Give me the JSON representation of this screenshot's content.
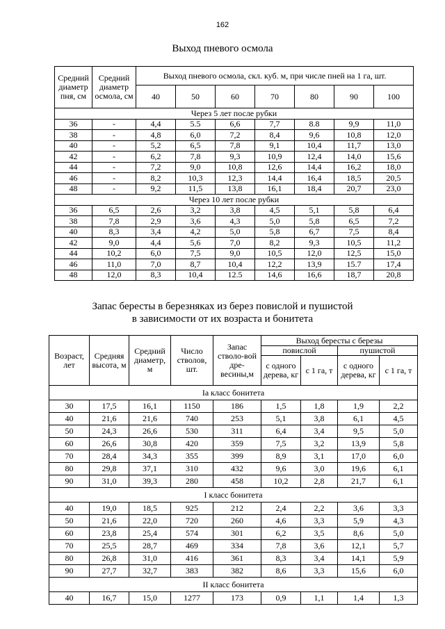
{
  "page_number": "162",
  "table1": {
    "title": "Выход пневого осмола",
    "header": {
      "stump_diameter": "Средний диаметр пня, см",
      "resin_diameter": "Средний диаметр осмола, см",
      "yield": "Выход пневого осмола, скл. куб. м, при числе пней на 1 га, шт.",
      "counts": [
        "40",
        "50",
        "60",
        "70",
        "80",
        "90",
        "100"
      ]
    },
    "sections": [
      {
        "title": "Через 5 лет после рубки",
        "rows": [
          [
            "36",
            "-",
            "4,4",
            "5.5",
            "6,6",
            "7,7",
            "8.8",
            "9,9",
            "11,0"
          ],
          [
            "38",
            "-",
            "4,8",
            "6,0",
            "7,2",
            "8,4",
            "9,6",
            "10,8",
            "12,0"
          ],
          [
            "40",
            "-",
            "5,2",
            "6,5",
            "7,8",
            "9,1",
            "10,4",
            "11,7",
            "13,0"
          ],
          [
            "42",
            "-",
            "6,2",
            "7,8",
            "9,3",
            "10,9",
            "12,4",
            "14,0",
            "15,6"
          ],
          [
            "44",
            "-",
            "7,2",
            "9,0",
            "10,8",
            "12,6",
            "14,4",
            "16,2",
            "18,0"
          ],
          [
            "46",
            "-",
            "8,2",
            "10,3",
            "12,3",
            "14,4",
            "16,4",
            "18,5",
            "20,5"
          ],
          [
            "48",
            "-",
            "9,2",
            "11,5",
            "13,8",
            "16,1",
            "18,4",
            "20,7",
            "23,0"
          ]
        ]
      },
      {
        "title": "Через 10 лет после рубки",
        "rows": [
          [
            "36",
            "6,5",
            "2,6",
            "3,2",
            "3,8",
            "4,5",
            "5,1",
            "5,8",
            "6,4"
          ],
          [
            "38",
            "7,8",
            "2,9",
            "3,6",
            "4,3",
            "5,0",
            "5,8",
            "6,5",
            "7,2"
          ],
          [
            "40",
            "8,3",
            "3,4",
            "4,2",
            "5,0",
            "5,8",
            "6,7",
            "7,5",
            "8,4"
          ],
          [
            "42",
            "9,0",
            "4,4",
            "5,6",
            "7,0",
            "8,2",
            "9,3",
            "10,5",
            "11,2"
          ],
          [
            "44",
            "10,2",
            "6,0",
            "7,5",
            "9,0",
            "10,5",
            "12,0",
            "12,5",
            "15,0"
          ],
          [
            "46",
            "11,0",
            "7,0",
            "8,7",
            "10,4",
            "12,2",
            "13,9",
            "15.7",
            "17,4"
          ],
          [
            "48",
            "12,0",
            "8,3",
            "10,4",
            "12.5",
            "14,6",
            "16,6",
            "18,7",
            "20,8"
          ]
        ]
      }
    ]
  },
  "table2": {
    "title_lines": [
      "Запас бересты в березняках из берез повислой и пушистой",
      "в зависимости от их возраста и бонитета"
    ],
    "header": {
      "age": "Возраст, лет",
      "height": "Средняя высота, м",
      "diameter": "Средний диаметр, м",
      "stems": "Число стволов, шт.",
      "stock": "Запас стволо-вой дре-весины,м",
      "bark_yield": "Выход бересты с березы",
      "pendula": "повислой",
      "pubescens": "пушистой",
      "per_tree_1": "с одного дерева, кг",
      "per_ha_1": "с 1 га, т",
      "per_tree_2": "с одного дерева, кг",
      "per_ha_2": "с 1 га, т"
    },
    "sections": [
      {
        "title": "Ia класс бонитета",
        "rows": [
          [
            "30",
            "17,5",
            "16,1",
            "1150",
            "186",
            "1,5",
            "1,8",
            "1,9",
            "2,2"
          ],
          [
            "40",
            "21,6",
            "21,6",
            "740",
            "253",
            "5,1",
            "3,8",
            "6,1",
            "4,5"
          ],
          [
            "50",
            "24,3",
            "26,6",
            "530",
            "311",
            "6,4",
            "3,4",
            "9,5",
            "5,0"
          ],
          [
            "60",
            "26,6",
            "30,8",
            "420",
            "359",
            "7,5",
            "3,2",
            "13,9",
            "5,8"
          ],
          [
            "70",
            "28,4",
            "34,3",
            "355",
            "399",
            "8,9",
            "3,1",
            "17,0",
            "6,0"
          ],
          [
            "80",
            "29,8",
            "37,1",
            "310",
            "432",
            "9,6",
            "3,0",
            "19,6",
            "6,1"
          ],
          [
            "90",
            "31,0",
            "39,3",
            "280",
            "458",
            "10,2",
            "2,8",
            "21,7",
            "6,1"
          ]
        ]
      },
      {
        "title": "I класс бонитета",
        "rows": [
          [
            "40",
            "19,0",
            "18,5",
            "925",
            "212",
            "2,4",
            "2,2",
            "3,6",
            "3,3"
          ],
          [
            "50",
            "21,6",
            "22,0",
            "720",
            "260",
            "4,6",
            "3,3",
            "5,9",
            "4,3"
          ],
          [
            "60",
            "23,8",
            "25,4",
            "574",
            "301",
            "6,2",
            "3,5",
            "8,6",
            "5,0"
          ],
          [
            "70",
            "25,5",
            "28,7",
            "469",
            "334",
            "7,8",
            "3,6",
            "12,1",
            "5,7"
          ],
          [
            "80",
            "26,8",
            "31,0",
            "416",
            "361",
            "8,3",
            "3,4",
            "14,1",
            "5,9"
          ],
          [
            "90",
            "27,7",
            "32,7",
            "383",
            "382",
            "8,6",
            "3,3",
            "15,6",
            "6,0"
          ]
        ]
      },
      {
        "title": "II класс бонитета",
        "rows": [
          [
            "40",
            "16,7",
            "15,0",
            "1277",
            "173",
            "0,9",
            "1,1",
            "1,4",
            "1,3"
          ]
        ]
      }
    ]
  }
}
